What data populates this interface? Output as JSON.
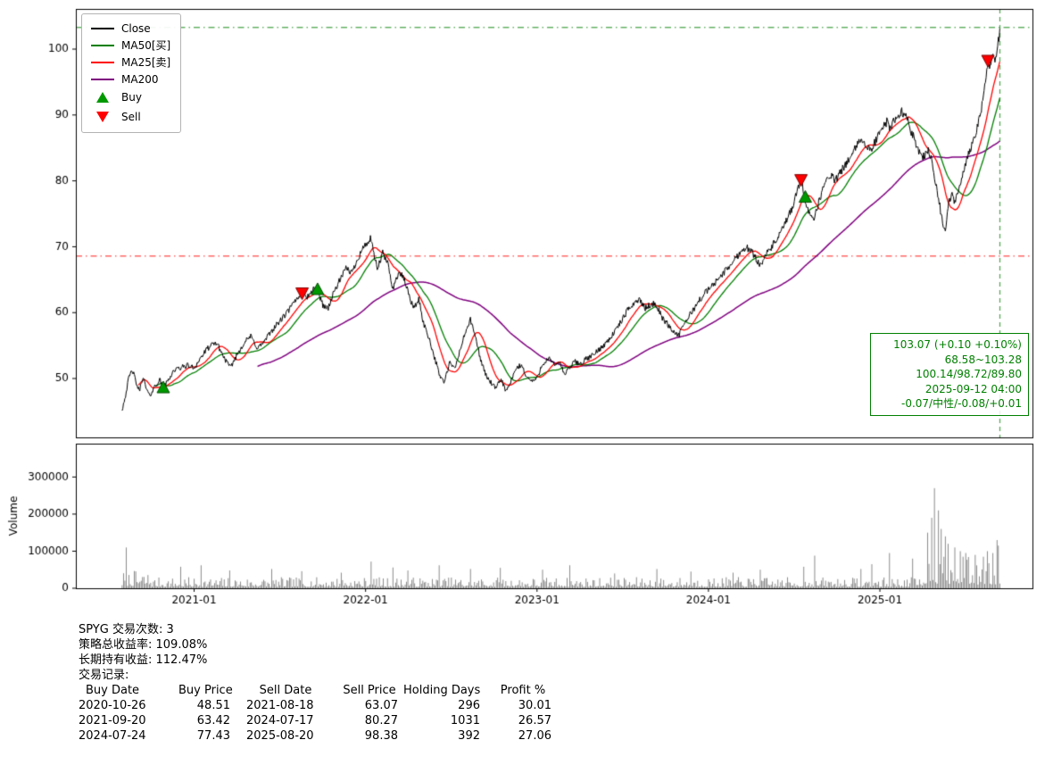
{
  "summary": {
    "lines": [
      "SPYG 交易次数: 3",
      "策略总收益率: 109.08%",
      "长期持有收益: 112.47%",
      "交易记录:"
    ]
  },
  "trade_table": {
    "headers": [
      "Buy Date",
      "Buy Price",
      "Sell Date",
      "Sell Price",
      "Holding Days",
      "Profit %"
    ],
    "rows": [
      [
        "2020-10-26",
        "48.51",
        "2021-08-18",
        "63.07",
        "296",
        "30.01"
      ],
      [
        "2021-09-20",
        "63.42",
        "2024-07-17",
        "80.27",
        "1031",
        "26.57"
      ],
      [
        "2024-07-24",
        "77.43",
        "2025-08-20",
        "98.38",
        "392",
        "27.06"
      ]
    ]
  },
  "chart_data": {
    "type": "line",
    "title": "",
    "xlabel": "",
    "x_axis": {
      "xlim_years": [
        2020.31,
        2025.89
      ],
      "ticks": [
        {
          "t": 2021.0,
          "label": "2021-01"
        },
        {
          "t": 2022.0,
          "label": "2022-01"
        },
        {
          "t": 2023.0,
          "label": "2023-01"
        },
        {
          "t": 2024.0,
          "label": "2024-01"
        },
        {
          "t": 2025.0,
          "label": "2025-01"
        }
      ]
    },
    "price_panel": {
      "ylim": [
        41.06,
        106.1
      ],
      "yticks": [
        50,
        60,
        70,
        80,
        90,
        100
      ],
      "grid": false,
      "close_color": "#000000",
      "ma25_color": "#ff0000",
      "ma50_color": "#007f00",
      "ma200_color": "#7f007f",
      "ma_windows": {
        "ma25": 25,
        "ma50": 50,
        "ma200": 200
      },
      "ma_final_values": {
        "ma25": 100.14,
        "ma50": 98.72,
        "ma200": 89.8
      },
      "close_anchors": [
        [
          2020.58,
          45.3
        ],
        [
          2020.6,
          47.5
        ],
        [
          2020.62,
          50.2
        ],
        [
          2020.64,
          51.3
        ],
        [
          2020.66,
          49.5
        ],
        [
          2020.68,
          48.0
        ],
        [
          2020.7,
          50.3
        ],
        [
          2020.72,
          48.5
        ],
        [
          2020.74,
          47.3
        ],
        [
          2020.77,
          48.8
        ],
        [
          2020.8,
          49.8
        ],
        [
          2020.82,
          48.51
        ],
        [
          2020.85,
          49.8
        ],
        [
          2020.88,
          51.2
        ],
        [
          2020.92,
          51.6
        ],
        [
          2020.96,
          52.0
        ],
        [
          2021.0,
          51.6
        ],
        [
          2021.04,
          53.2
        ],
        [
          2021.08,
          54.6
        ],
        [
          2021.13,
          55.5
        ],
        [
          2021.17,
          53.4
        ],
        [
          2021.21,
          51.6
        ],
        [
          2021.25,
          53.6
        ],
        [
          2021.29,
          55.4
        ],
        [
          2021.33,
          56.4
        ],
        [
          2021.37,
          54.6
        ],
        [
          2021.41,
          55.6
        ],
        [
          2021.45,
          57.2
        ],
        [
          2021.49,
          58.4
        ],
        [
          2021.53,
          59.6
        ],
        [
          2021.57,
          61.0
        ],
        [
          2021.6,
          62.2
        ],
        [
          2021.63,
          63.07
        ],
        [
          2021.66,
          62.4
        ],
        [
          2021.7,
          63.6
        ],
        [
          2021.72,
          63.42
        ],
        [
          2021.75,
          61.2
        ],
        [
          2021.78,
          60.6
        ],
        [
          2021.82,
          63.4
        ],
        [
          2021.86,
          65.4
        ],
        [
          2021.89,
          66.8
        ],
        [
          2021.92,
          66.0
        ],
        [
          2021.95,
          68.0
        ],
        [
          2021.98,
          69.6
        ],
        [
          2022.01,
          70.6
        ],
        [
          2022.03,
          71.2
        ],
        [
          2022.05,
          68.6
        ],
        [
          2022.07,
          66.6
        ],
        [
          2022.1,
          69.0
        ],
        [
          2022.13,
          67.4
        ],
        [
          2022.16,
          63.6
        ],
        [
          2022.19,
          66.0
        ],
        [
          2022.22,
          65.4
        ],
        [
          2022.25,
          63.0
        ],
        [
          2022.28,
          60.6
        ],
        [
          2022.31,
          62.0
        ],
        [
          2022.34,
          58.2
        ],
        [
          2022.37,
          56.2
        ],
        [
          2022.4,
          53.4
        ],
        [
          2022.43,
          50.6
        ],
        [
          2022.46,
          49.4
        ],
        [
          2022.49,
          52.4
        ],
        [
          2022.52,
          51.4
        ],
        [
          2022.55,
          54.2
        ],
        [
          2022.58,
          56.8
        ],
        [
          2022.61,
          59.0
        ],
        [
          2022.64,
          56.4
        ],
        [
          2022.67,
          53.0
        ],
        [
          2022.7,
          50.6
        ],
        [
          2022.73,
          49.4
        ],
        [
          2022.76,
          48.4
        ],
        [
          2022.79,
          50.0
        ],
        [
          2022.82,
          48.0
        ],
        [
          2022.85,
          49.6
        ],
        [
          2022.88,
          51.6
        ],
        [
          2022.91,
          52.0
        ],
        [
          2022.94,
          50.2
        ],
        [
          2022.97,
          49.6
        ],
        [
          2023.0,
          50.0
        ],
        [
          2023.03,
          52.2
        ],
        [
          2023.07,
          53.0
        ],
        [
          2023.1,
          52.0
        ],
        [
          2023.13,
          52.6
        ],
        [
          2023.16,
          50.6
        ],
        [
          2023.19,
          51.6
        ],
        [
          2023.22,
          52.6
        ],
        [
          2023.25,
          52.2
        ],
        [
          2023.29,
          53.0
        ],
        [
          2023.33,
          53.6
        ],
        [
          2023.37,
          54.6
        ],
        [
          2023.41,
          55.6
        ],
        [
          2023.45,
          57.0
        ],
        [
          2023.49,
          58.6
        ],
        [
          2023.53,
          60.4
        ],
        [
          2023.57,
          61.6
        ],
        [
          2023.6,
          62.0
        ],
        [
          2023.63,
          60.6
        ],
        [
          2023.67,
          61.4
        ],
        [
          2023.7,
          61.0
        ],
        [
          2023.73,
          59.2
        ],
        [
          2023.77,
          58.0
        ],
        [
          2023.8,
          57.0
        ],
        [
          2023.83,
          56.6
        ],
        [
          2023.86,
          58.4
        ],
        [
          2023.9,
          60.0
        ],
        [
          2023.94,
          61.6
        ],
        [
          2023.98,
          63.0
        ],
        [
          2024.02,
          64.0
        ],
        [
          2024.06,
          65.2
        ],
        [
          2024.1,
          66.4
        ],
        [
          2024.14,
          67.6
        ],
        [
          2024.18,
          69.0
        ],
        [
          2024.22,
          70.0
        ],
        [
          2024.26,
          69.0
        ],
        [
          2024.3,
          67.2
        ],
        [
          2024.33,
          68.6
        ],
        [
          2024.37,
          70.0
        ],
        [
          2024.41,
          71.6
        ],
        [
          2024.45,
          73.6
        ],
        [
          2024.49,
          76.0
        ],
        [
          2024.52,
          78.6
        ],
        [
          2024.54,
          80.27
        ],
        [
          2024.56,
          77.43
        ],
        [
          2024.59,
          75.0
        ],
        [
          2024.62,
          74.4
        ],
        [
          2024.65,
          77.4
        ],
        [
          2024.68,
          79.6
        ],
        [
          2024.71,
          81.0
        ],
        [
          2024.74,
          80.0
        ],
        [
          2024.77,
          81.2
        ],
        [
          2024.8,
          82.6
        ],
        [
          2024.83,
          83.6
        ],
        [
          2024.86,
          85.0
        ],
        [
          2024.89,
          86.6
        ],
        [
          2024.92,
          85.0
        ],
        [
          2024.95,
          84.6
        ],
        [
          2024.98,
          86.4
        ],
        [
          2025.01,
          87.6
        ],
        [
          2025.04,
          89.0
        ],
        [
          2025.06,
          88.0
        ],
        [
          2025.09,
          89.6
        ],
        [
          2025.13,
          90.5
        ],
        [
          2025.16,
          89.4
        ],
        [
          2025.19,
          87.0
        ],
        [
          2025.22,
          85.0
        ],
        [
          2025.25,
          83.6
        ],
        [
          2025.28,
          84.6
        ],
        [
          2025.3,
          83.4
        ],
        [
          2025.33,
          79.0
        ],
        [
          2025.36,
          74.6
        ],
        [
          2025.38,
          72.0
        ],
        [
          2025.4,
          76.4
        ],
        [
          2025.42,
          78.0
        ],
        [
          2025.44,
          76.6
        ],
        [
          2025.47,
          80.0
        ],
        [
          2025.5,
          82.6
        ],
        [
          2025.53,
          85.0
        ],
        [
          2025.56,
          87.4
        ],
        [
          2025.58,
          89.4
        ],
        [
          2025.6,
          92.0
        ],
        [
          2025.615,
          94.6
        ],
        [
          2025.63,
          98.38
        ],
        [
          2025.645,
          97.0
        ],
        [
          2025.66,
          99.2
        ],
        [
          2025.675,
          98.6
        ],
        [
          2025.69,
          100.8
        ],
        [
          2025.7,
          103.07
        ]
      ],
      "hlines": [
        {
          "y": 103.28,
          "color": "#008000",
          "style": "dashdot"
        },
        {
          "y": 68.58,
          "color": "#ff0000",
          "style": "dashdot"
        }
      ],
      "vline": {
        "t": 2025.7,
        "color": "#008000",
        "style": "dashed",
        "date": "2025-09-12"
      },
      "markers": {
        "buy": {
          "color": "#009900",
          "edge": "#004d00",
          "points": [
            [
              2020.82,
              48.51
            ],
            [
              2021.72,
              63.42
            ],
            [
              2024.565,
              77.43
            ]
          ]
        },
        "sell": {
          "color": "#ff0000",
          "edge": "#7f0000",
          "points": [
            [
              2021.63,
              63.07
            ],
            [
              2024.54,
              80.27
            ],
            [
              2025.63,
              98.38
            ]
          ]
        }
      }
    },
    "volume_panel": {
      "ylabel": "Volume",
      "ylim": [
        0,
        390000
      ],
      "yticks": [
        0,
        100000,
        200000,
        300000
      ],
      "bar_color": "#6e6e6e",
      "base_range": [
        4000,
        30000
      ],
      "clusters": [
        {
          "from": 2020.58,
          "to": 2020.75,
          "mult": 1.6
        },
        {
          "from": 2025.25,
          "to": 2025.55,
          "mult": 3.0
        },
        {
          "from": 2025.55,
          "to": 2025.705,
          "mult": 2.4
        }
      ],
      "spikes": [
        [
          2020.6,
          110000
        ],
        [
          2020.92,
          58000
        ],
        [
          2021.04,
          62000
        ],
        [
          2021.21,
          48000
        ],
        [
          2021.45,
          52000
        ],
        [
          2021.63,
          46000
        ],
        [
          2021.86,
          42000
        ],
        [
          2022.03,
          72000
        ],
        [
          2022.16,
          56000
        ],
        [
          2022.25,
          48000
        ],
        [
          2022.43,
          62000
        ],
        [
          2022.61,
          52000
        ],
        [
          2022.79,
          55000
        ],
        [
          2023.03,
          50000
        ],
        [
          2023.19,
          62000
        ],
        [
          2023.45,
          40000
        ],
        [
          2023.7,
          52000
        ],
        [
          2023.9,
          45000
        ],
        [
          2024.14,
          42000
        ],
        [
          2024.3,
          50000
        ],
        [
          2024.56,
          58000
        ],
        [
          2024.62,
          88000
        ],
        [
          2024.89,
          52000
        ],
        [
          2024.95,
          65000
        ],
        [
          2025.06,
          95000
        ],
        [
          2025.19,
          80000
        ],
        [
          2025.28,
          150000
        ],
        [
          2025.3,
          190000
        ],
        [
          2025.32,
          270000
        ],
        [
          2025.34,
          210000
        ],
        [
          2025.36,
          160000
        ],
        [
          2025.38,
          140000
        ],
        [
          2025.4,
          120000
        ],
        [
          2025.44,
          110000
        ],
        [
          2025.47,
          100000
        ],
        [
          2025.5,
          95000
        ],
        [
          2025.56,
          90000
        ],
        [
          2025.6,
          85000
        ],
        [
          2025.63,
          100000
        ],
        [
          2025.66,
          95000
        ],
        [
          2025.68,
          130000
        ],
        [
          2025.695,
          115000
        ]
      ]
    },
    "annotation": {
      "color": "#008000",
      "lines": [
        "103.07 (+0.10 +0.10%)",
        "68.58~103.28",
        "100.14/98.72/89.80",
        "2025-09-12 04:00",
        "-0.07/中性/-0.08/+0.01"
      ]
    },
    "legend": {
      "position": "upper-left",
      "items": [
        {
          "label": "Close",
          "swatch": "line",
          "color": "#000000"
        },
        {
          "label": "MA50[买]",
          "swatch": "line",
          "color": "#007f00"
        },
        {
          "label": "MA25[卖]",
          "swatch": "line",
          "color": "#ff0000"
        },
        {
          "label": "MA200",
          "swatch": "line",
          "color": "#7f007f"
        },
        {
          "label": "Buy",
          "swatch": "triangle-up",
          "color": "#009900"
        },
        {
          "label": "Sell",
          "swatch": "triangle-down",
          "color": "#ff0000"
        }
      ]
    }
  }
}
